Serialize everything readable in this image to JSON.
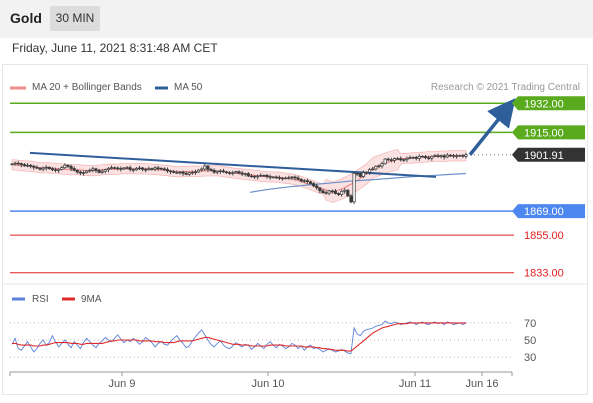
{
  "header": {
    "title": "Gold",
    "timeframe": "30 MIN"
  },
  "datetime": "Friday, June 11, 2021 8:31:48 AM CET",
  "legend": {
    "ma20_label": "MA 20 + Bollinger Bands",
    "ma50_label": "MA 50",
    "credit": "Research © 2021 Trading Central",
    "rsi_label": "RSI",
    "ma9_label": "9MA"
  },
  "colors": {
    "resistance": "#5aaa1e",
    "support": "#4d88f0",
    "lower_level": "#e22020",
    "current": "#333333",
    "trendline": "#2f5f9a",
    "ma50": "#6b91c9",
    "bollinger": "#f7caca",
    "rsi": "#5b82d8",
    "ma9": "#e02a2a"
  },
  "chart_data": [
    {
      "type": "candlestick",
      "title": "",
      "x_ticks": [
        "Jun 9",
        "Jun 10",
        "Jun 11",
        "Jun 16"
      ],
      "ylim": [
        1827,
        1938
      ],
      "levels": [
        {
          "value": 1932.0,
          "label": "1932.00",
          "kind": "resistance"
        },
        {
          "value": 1915.0,
          "label": "1915.00",
          "kind": "resistance"
        },
        {
          "value": 1901.91,
          "label": "1901.91",
          "kind": "current"
        },
        {
          "value": 1869.0,
          "label": "1869.00",
          "kind": "support"
        },
        {
          "value": 1855.0,
          "label": "1855.00",
          "kind": "lower"
        },
        {
          "value": 1833.0,
          "label": "1833.00",
          "kind": "lower"
        }
      ],
      "close_series": [
        1896.5,
        1897,
        1896.8,
        1896.2,
        1895.5,
        1895.8,
        1895.2,
        1894.6,
        1894.1,
        1893.5,
        1894.2,
        1894.6,
        1893.8,
        1893.2,
        1892.8,
        1893.4,
        1894.4,
        1895.8,
        1895.2,
        1893.9,
        1892.8,
        1891.8,
        1891.2,
        1891.5,
        1892.4,
        1892.9,
        1893.7,
        1892.8,
        1891.6,
        1892.3,
        1893.2,
        1893.9,
        1894.4,
        1894.2,
        1893.9,
        1893.6,
        1894.2,
        1894.4,
        1893.3,
        1893.1,
        1893.9,
        1894.2,
        1893.4,
        1893.2,
        1893.8,
        1893.5,
        1894.3,
        1894,
        1893.7,
        1893.3,
        1892.5,
        1892.1,
        1891.6,
        1891.6,
        1891.8,
        1891.1,
        1890.5,
        1891.4,
        1891.7,
        1891.9,
        1893,
        1893.6,
        1895.3,
        1893.4,
        1892.8,
        1891.7,
        1892.3,
        1892.5,
        1891.9,
        1891.5,
        1891.3,
        1891.4,
        1892,
        1891.3,
        1890.7,
        1890.9,
        1889.5,
        1889.4,
        1889,
        1889.5,
        1889.9,
        1889.9,
        1889.2,
        1888.8,
        1888.9,
        1888.6,
        1888.3,
        1888.3,
        1888.3,
        1888.5,
        1888.9,
        1888.4,
        1887.6,
        1886.6,
        1886.8,
        1886.2,
        1885.1,
        1883.8,
        1882.6,
        1880.9,
        1879.8,
        1879.5,
        1880.8,
        1880.7,
        1879.3,
        1878.7,
        1880.6,
        1881.2,
        1877.9,
        1874.4,
        1891,
        1890.9,
        1889.2,
        1891.5,
        1891.7,
        1893.2,
        1893.6,
        1895.2,
        1895.4,
        1896.7,
        1899.4,
        1899,
        1898.7,
        1899.7,
        1899.7,
        1898.9,
        1899.1,
        1899.9,
        1900.3,
        1900.4,
        1899.8,
        1901,
        1900.9,
        1900.2,
        1899.9,
        1901,
        1901.4,
        1901,
        1901.4,
        1900.6,
        1901.7,
        1901.5,
        1901.1,
        1901.3,
        1901.5,
        1901,
        1901.9
      ],
      "ma50_series": [
        1880.0,
        1881.8,
        1883.2,
        1884.3,
        1885.3,
        1886.4,
        1887.2,
        1888.0,
        1888.9,
        1889.6,
        1890.3,
        1891.0
      ],
      "trendline": {
        "start": 1903.0,
        "end": 1889.0
      },
      "projection_arrow": {
        "from": 1901.91,
        "to": 1932.0
      }
    },
    {
      "type": "line",
      "title": "",
      "ylim": [
        15,
        85
      ],
      "y_ticks": [
        70,
        50,
        30
      ],
      "series": [
        {
          "name": "RSI",
          "values": [
            45,
            52,
            40,
            38,
            43,
            48,
            42,
            36,
            40,
            46,
            50,
            44,
            47,
            55,
            48,
            42,
            46,
            50,
            45,
            41,
            48,
            44,
            40,
            47,
            52,
            48,
            44,
            41,
            46,
            49,
            53,
            50,
            48,
            52,
            56,
            51,
            47,
            50,
            48,
            52,
            49,
            45,
            48,
            53,
            50,
            47,
            42,
            46,
            48,
            45,
            44,
            48,
            52,
            55,
            50,
            46,
            41,
            43,
            49,
            54,
            58,
            62,
            56,
            50,
            45,
            42,
            46,
            49,
            44,
            41,
            40,
            43,
            47,
            44,
            42,
            45,
            44,
            39,
            42,
            46,
            43,
            40,
            45,
            48,
            44,
            41,
            45,
            43,
            40,
            42,
            46,
            44,
            40,
            43,
            38,
            42,
            44,
            40,
            41,
            39,
            36,
            38,
            40,
            38,
            36,
            37,
            39,
            37,
            35,
            34,
            64,
            57,
            55,
            60,
            62,
            63,
            64,
            66,
            67,
            68,
            72,
            70,
            69,
            71,
            70,
            68,
            69,
            70,
            71,
            70,
            68,
            70,
            71,
            69,
            68,
            70,
            71,
            69,
            70,
            68,
            71,
            70,
            68,
            69,
            70,
            68,
            70
          ]
        },
        {
          "name": "9MA",
          "values": [
            46,
            46,
            45,
            44,
            44,
            44,
            44,
            43,
            43,
            43,
            44,
            44,
            45,
            46,
            47,
            47,
            47,
            47,
            47,
            46,
            46,
            46,
            45,
            45,
            46,
            46,
            46,
            46,
            46,
            46,
            47,
            48,
            49,
            49,
            50,
            50,
            50,
            50,
            50,
            50,
            50,
            49,
            49,
            49,
            49,
            49,
            48,
            48,
            48,
            47,
            47,
            47,
            47,
            48,
            49,
            49,
            49,
            49,
            49,
            50,
            51,
            52,
            53,
            53,
            52,
            51,
            50,
            49,
            48,
            47,
            46,
            45,
            45,
            45,
            44,
            44,
            44,
            43,
            43,
            43,
            43,
            43,
            43,
            44,
            44,
            44,
            44,
            44,
            43,
            43,
            43,
            43,
            43,
            43,
            42,
            42,
            42,
            42,
            41,
            41,
            40,
            40,
            39,
            39,
            38,
            38,
            38,
            38,
            37,
            37,
            40,
            43,
            46,
            49,
            52,
            55,
            58,
            60,
            62,
            64,
            65,
            66,
            67,
            68,
            69,
            69,
            69,
            69,
            70,
            70,
            70,
            70,
            70,
            70,
            70,
            70,
            70,
            70,
            70,
            70,
            70,
            70,
            70,
            70,
            70,
            70,
            70
          ]
        }
      ]
    }
  ]
}
